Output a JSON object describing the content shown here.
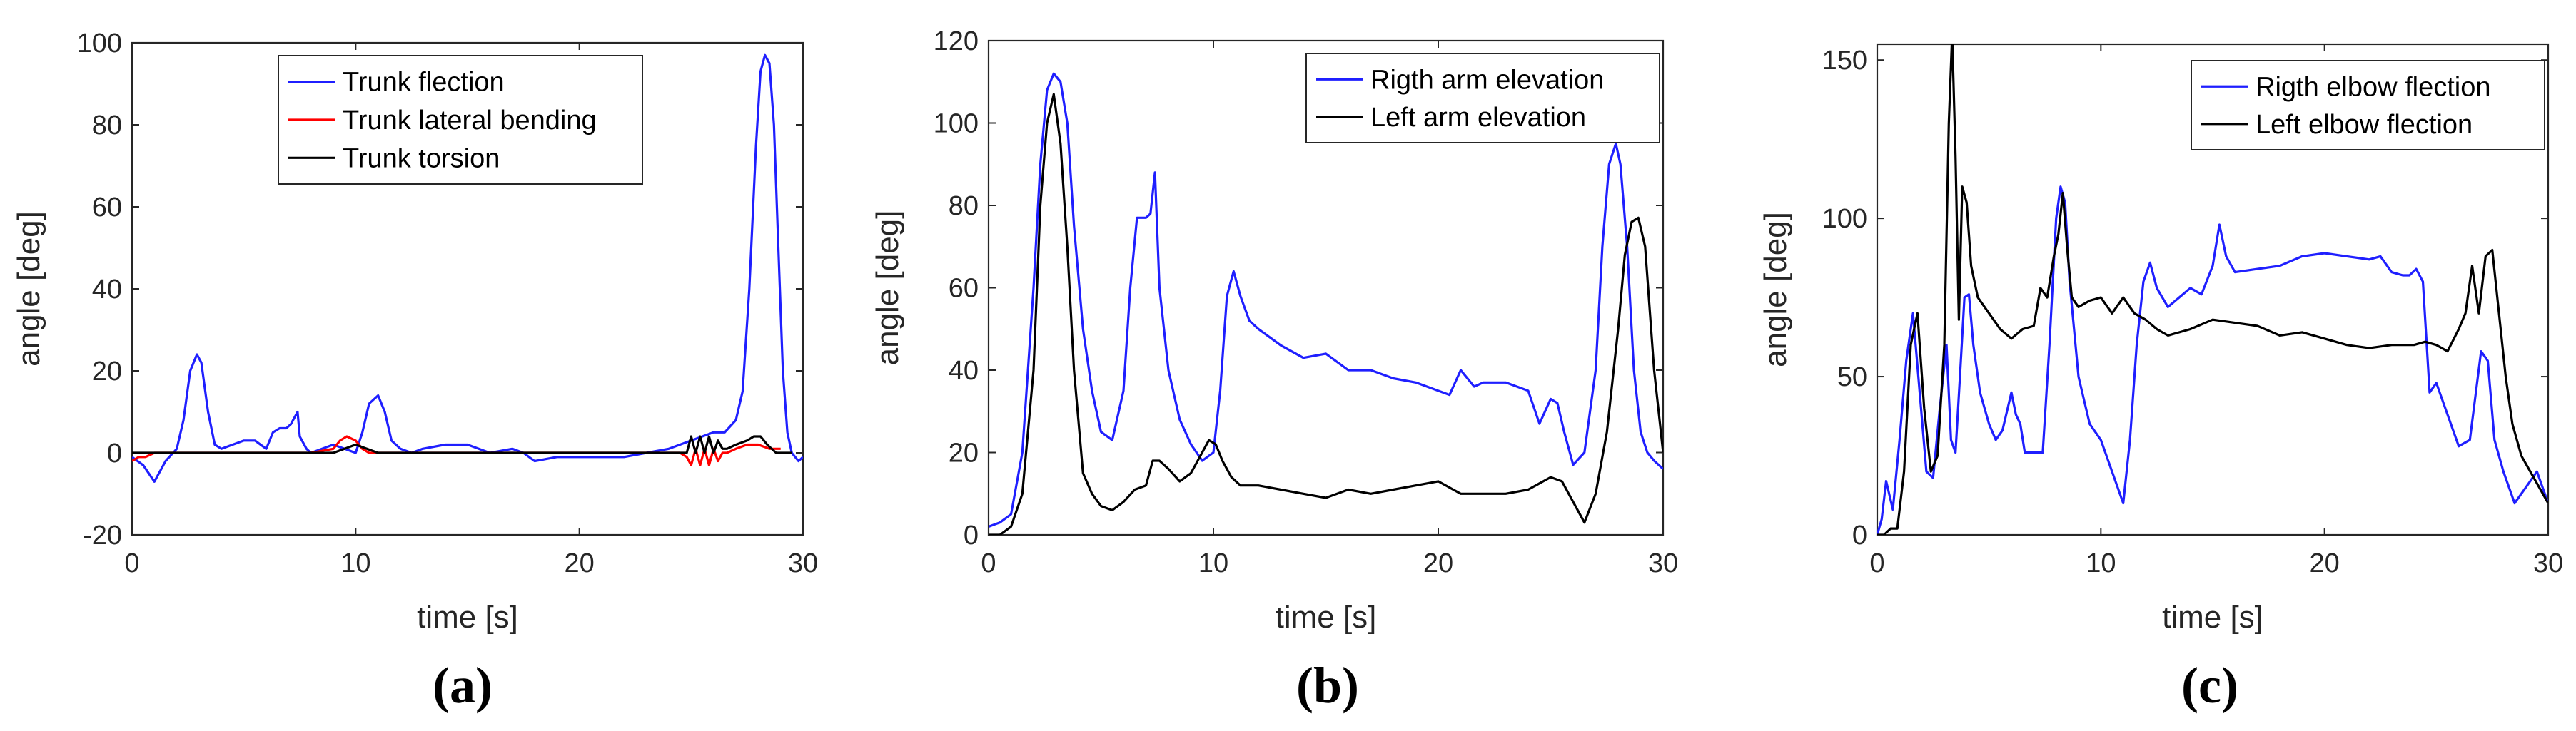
{
  "colors": {
    "blue": "#1f1fff",
    "red": "#ff0000",
    "black": "#000000",
    "axis": "#262626"
  },
  "chart_data": [
    {
      "type": "line",
      "panel_label": "(a)",
      "xlabel": "time [s]",
      "ylabel": "angle [deg]",
      "xlim": [
        0,
        30
      ],
      "ylim": [
        -20,
        100
      ],
      "xticks": [
        0,
        10,
        20,
        30
      ],
      "yticks": [
        -20,
        0,
        20,
        40,
        60,
        80,
        100
      ],
      "legend_position": "top-center",
      "series": [
        {
          "name": "Trunk flection",
          "color": "#1f1fff",
          "x": [
            0,
            0.5,
            1,
            1.5,
            2,
            2.3,
            2.6,
            2.9,
            3.1,
            3.4,
            3.7,
            4,
            4.5,
            5,
            5.5,
            6,
            6.3,
            6.6,
            6.9,
            7.1,
            7.4,
            7.5,
            7.6,
            7.8,
            8,
            8.5,
            9,
            9.5,
            10,
            10.3,
            10.6,
            11,
            11.3,
            11.6,
            12,
            12.5,
            13,
            14,
            15,
            16,
            17,
            17.5,
            18,
            19,
            20,
            21,
            22,
            23,
            24,
            24.5,
            25,
            25.5,
            26,
            26.5,
            27,
            27.3,
            27.6,
            27.9,
            28.1,
            28.3,
            28.5,
            28.7,
            28.9,
            29.1,
            29.3,
            29.5,
            29.8,
            30
          ],
          "y": [
            -1,
            -3,
            -7,
            -2,
            1,
            8,
            20,
            24,
            22,
            10,
            2,
            1,
            2,
            3,
            3,
            1,
            5,
            6,
            6,
            7,
            10,
            4,
            3,
            1,
            0,
            1,
            2,
            1,
            0,
            5,
            12,
            14,
            10,
            3,
            1,
            0,
            1,
            2,
            2,
            0,
            1,
            0,
            -2,
            -1,
            -1,
            -1,
            -1,
            0,
            1,
            2,
            3,
            4,
            5,
            5,
            8,
            15,
            40,
            75,
            93,
            97,
            95,
            80,
            50,
            20,
            5,
            0,
            -2,
            -1
          ]
        },
        {
          "name": "Trunk lateral bending",
          "color": "#ff0000",
          "x": [
            0,
            0.3,
            0.6,
            1,
            5,
            8,
            9,
            9.3,
            9.6,
            10,
            10.3,
            10.6,
            11,
            20,
            24.5,
            24.8,
            25,
            25.2,
            25.4,
            25.6,
            25.8,
            26,
            26.2,
            26.4,
            26.6,
            27,
            27.5,
            28,
            28.5,
            29
          ],
          "y": [
            -2,
            -1,
            -1,
            0,
            0,
            0,
            1,
            3,
            4,
            3,
            1,
            0,
            0,
            0,
            0,
            -1,
            -3,
            1,
            -3,
            1,
            -3,
            1,
            -2,
            0,
            0,
            1,
            2,
            2,
            1,
            1
          ]
        },
        {
          "name": "Trunk torsion",
          "color": "#000000",
          "x": [
            0,
            5,
            9,
            9.5,
            10,
            10.5,
            11,
            20,
            24.5,
            24.8,
            25,
            25.2,
            25.4,
            25.6,
            25.8,
            26,
            26.2,
            26.4,
            26.6,
            27,
            27.5,
            27.8,
            28.1,
            28.4,
            28.8,
            29.5
          ],
          "y": [
            0,
            0,
            0,
            1,
            2,
            1,
            0,
            0,
            0,
            0,
            4,
            0,
            4,
            0,
            4,
            0,
            3,
            1,
            1,
            2,
            3,
            4,
            4,
            2,
            0,
            0
          ]
        }
      ]
    },
    {
      "type": "line",
      "panel_label": "(b)",
      "xlabel": "time [s]",
      "ylabel": "angle [deg]",
      "xlim": [
        0,
        30
      ],
      "ylim": [
        0,
        120
      ],
      "xticks": [
        0,
        10,
        20,
        30
      ],
      "yticks": [
        0,
        20,
        40,
        60,
        80,
        100,
        120
      ],
      "legend_position": "top-right",
      "series": [
        {
          "name": "Rigth arm elevation",
          "color": "#1f1fff",
          "x": [
            0,
            0.5,
            1,
            1.5,
            2,
            2.3,
            2.6,
            2.9,
            3.2,
            3.5,
            3.8,
            4.2,
            4.6,
            5,
            5.5,
            6,
            6.3,
            6.6,
            7,
            7.2,
            7.4,
            7.6,
            8,
            8.5,
            9,
            9.5,
            10,
            10.3,
            10.6,
            10.9,
            11.2,
            11.6,
            12,
            13,
            14,
            15,
            16,
            17,
            18,
            19,
            20,
            20.5,
            21,
            21.3,
            21.6,
            22,
            23,
            24,
            24.5,
            25,
            25.3,
            25.6,
            26,
            26.5,
            27,
            27.3,
            27.6,
            27.9,
            28.1,
            28.4,
            28.7,
            29,
            29.3,
            29.6,
            30
          ],
          "y": [
            2,
            3,
            5,
            20,
            60,
            90,
            108,
            112,
            110,
            100,
            75,
            50,
            35,
            25,
            23,
            35,
            60,
            77,
            77,
            78,
            88,
            60,
            40,
            28,
            22,
            18,
            20,
            35,
            58,
            64,
            58,
            52,
            50,
            46,
            43,
            44,
            40,
            40,
            38,
            37,
            35,
            34,
            40,
            38,
            36,
            37,
            37,
            35,
            27,
            33,
            32,
            25,
            17,
            20,
            40,
            70,
            90,
            95,
            90,
            70,
            40,
            25,
            20,
            18,
            16
          ]
        },
        {
          "name": "Left arm elevation",
          "color": "#000000",
          "x": [
            0,
            0.5,
            1,
            1.5,
            2,
            2.3,
            2.6,
            2.9,
            3.2,
            3.5,
            3.8,
            4.2,
            4.6,
            5,
            5.5,
            6,
            6.5,
            7,
            7.3,
            7.6,
            8,
            8.5,
            9,
            9.5,
            9.8,
            10.1,
            10.4,
            10.8,
            11.2,
            12,
            13,
            14,
            15,
            16,
            17,
            18,
            19,
            20,
            21,
            22,
            23,
            24,
            25,
            25.5,
            26,
            26.5,
            27,
            27.5,
            28,
            28.3,
            28.6,
            28.9,
            29.2,
            29.6,
            30
          ],
          "y": [
            0,
            0,
            2,
            10,
            40,
            80,
            100,
            107,
            95,
            70,
            40,
            15,
            10,
            7,
            6,
            8,
            11,
            12,
            18,
            18,
            16,
            13,
            15,
            20,
            23,
            22,
            18,
            14,
            12,
            12,
            11,
            10,
            9,
            11,
            10,
            11,
            12,
            13,
            10,
            10,
            10,
            11,
            14,
            13,
            8,
            3,
            10,
            25,
            50,
            68,
            76,
            77,
            70,
            40,
            20
          ]
        }
      ]
    },
    {
      "type": "line",
      "panel_label": "(c)",
      "xlabel": "time [s]",
      "ylabel": "angle [deg]",
      "xlim": [
        0,
        30
      ],
      "ylim": [
        0,
        155
      ],
      "xticks": [
        0,
        10,
        20,
        30
      ],
      "yticks": [
        0,
        50,
        100,
        150
      ],
      "legend_position": "top-right",
      "series": [
        {
          "name": "Rigth elbow flection",
          "color": "#1f1fff",
          "x": [
            0,
            0.2,
            0.4,
            0.7,
            1,
            1.3,
            1.6,
            1.9,
            2.2,
            2.5,
            2.8,
            3.1,
            3.3,
            3.5,
            3.7,
            3.9,
            4.1,
            4.3,
            4.6,
            5,
            5.3,
            5.6,
            6,
            6.2,
            6.4,
            6.6,
            7,
            7.4,
            7.7,
            8,
            8.2,
            8.4,
            8.6,
            9,
            9.5,
            10,
            10.5,
            11,
            11.3,
            11.6,
            11.9,
            12.2,
            12.5,
            13,
            13.5,
            14,
            14.5,
            15,
            15.3,
            15.6,
            16,
            17,
            18,
            19,
            20,
            21,
            22,
            22.5,
            23,
            23.5,
            23.8,
            24.1,
            24.4,
            24.7,
            25,
            25.5,
            26,
            26.5,
            27,
            27.3,
            27.6,
            28,
            28.5,
            29,
            29.5,
            30
          ],
          "y": [
            0,
            5,
            17,
            8,
            30,
            55,
            70,
            45,
            20,
            18,
            40,
            60,
            30,
            26,
            50,
            75,
            76,
            60,
            45,
            35,
            30,
            33,
            45,
            38,
            35,
            26,
            26,
            26,
            60,
            100,
            110,
            105,
            80,
            50,
            35,
            30,
            20,
            10,
            30,
            60,
            80,
            86,
            78,
            72,
            75,
            78,
            76,
            85,
            98,
            88,
            83,
            84,
            85,
            88,
            89,
            88,
            87,
            88,
            83,
            82,
            82,
            84,
            80,
            45,
            48,
            38,
            28,
            30,
            58,
            55,
            30,
            20,
            10,
            15,
            20,
            10
          ]
        },
        {
          "name": "Left elbow flection",
          "color": "#000000",
          "x": [
            0,
            0.3,
            0.6,
            0.9,
            1.2,
            1.5,
            1.8,
            2.1,
            2.4,
            2.7,
            3,
            3.2,
            3.35,
            3.5,
            3.65,
            3.8,
            4,
            4.2,
            4.5,
            5,
            5.5,
            6,
            6.5,
            7,
            7.3,
            7.6,
            7.9,
            8.1,
            8.3,
            8.5,
            8.7,
            9,
            9.5,
            10,
            10.5,
            11,
            11.5,
            12,
            12.5,
            13,
            14,
            15,
            16,
            17,
            18,
            19,
            20,
            21,
            22,
            23,
            24,
            24.5,
            25,
            25.5,
            26,
            26.3,
            26.6,
            26.9,
            27.2,
            27.5,
            27.8,
            28.1,
            28.4,
            28.8,
            29.2,
            29.6,
            30
          ],
          "y": [
            0,
            0,
            2,
            2,
            20,
            60,
            70,
            40,
            20,
            25,
            60,
            130,
            158,
            120,
            68,
            110,
            105,
            85,
            75,
            70,
            65,
            62,
            65,
            66,
            78,
            75,
            88,
            95,
            108,
            90,
            75,
            72,
            74,
            75,
            70,
            75,
            70,
            68,
            65,
            63,
            65,
            68,
            67,
            66,
            63,
            64,
            62,
            60,
            59,
            60,
            60,
            61,
            60,
            58,
            65,
            70,
            85,
            70,
            88,
            90,
            70,
            50,
            35,
            25,
            20,
            15,
            10
          ]
        }
      ]
    }
  ]
}
